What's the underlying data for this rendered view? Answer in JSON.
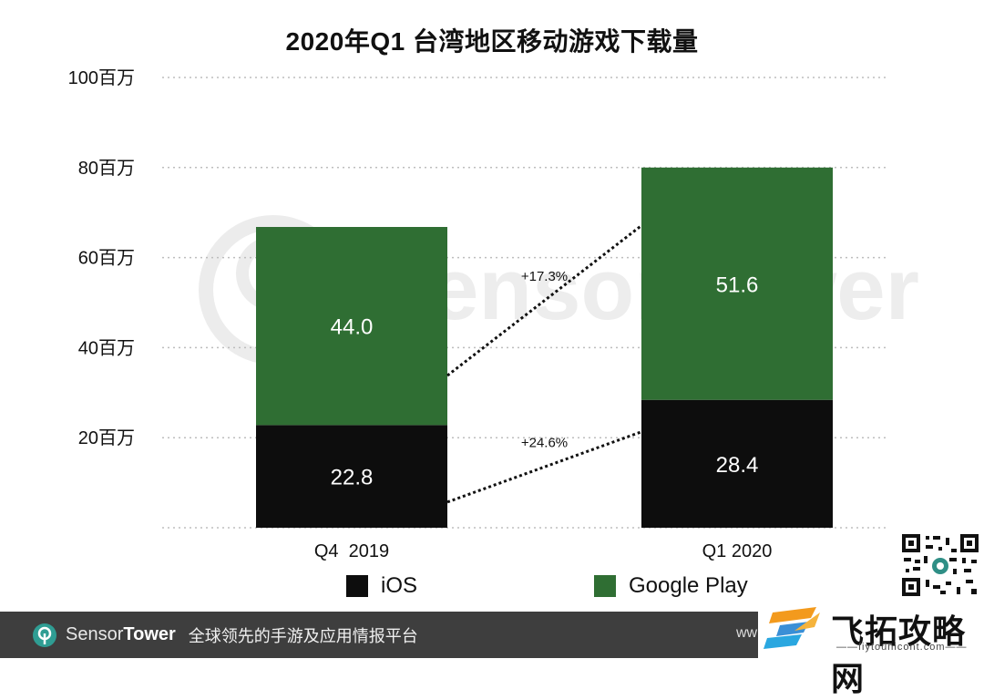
{
  "chart_data": {
    "type": "bar",
    "stacked": true,
    "title": "2020年Q1 台湾地区移动游戏下载量",
    "categories": [
      "Q4  2019",
      "Q1 2020"
    ],
    "series": [
      {
        "name": "iOS",
        "values": [
          22.8,
          28.4
        ],
        "value_labels": [
          "22.8",
          "28.4"
        ],
        "color": "#0d0d0d"
      },
      {
        "name": "Google Play",
        "values": [
          44.0,
          51.6
        ],
        "value_labels": [
          "44.0",
          "51.6"
        ],
        "color": "#2f6e33"
      }
    ],
    "ylim": [
      0,
      100
    ],
    "yticks": [
      {
        "value": 20,
        "label": "20百万"
      },
      {
        "value": 40,
        "label": "40百万"
      },
      {
        "value": 60,
        "label": "60百万"
      },
      {
        "value": 80,
        "label": "80百万"
      },
      {
        "value": 100,
        "label": "100百万"
      }
    ],
    "grid": true,
    "legend_position": "bottom",
    "annotations": [
      {
        "series": "Google Play",
        "text": "+17.3%"
      },
      {
        "series": "iOS",
        "text": "+24.6%"
      }
    ],
    "watermark": "SensorTower"
  },
  "footer": {
    "brand_light": "Sensor",
    "brand_bold": "Tower",
    "slogan": "全球领先的手游及应用情报平台",
    "url": "ww"
  },
  "site_watermark": {
    "name": "飞拓攻略网",
    "domain": "——fiytounicont.com——"
  }
}
